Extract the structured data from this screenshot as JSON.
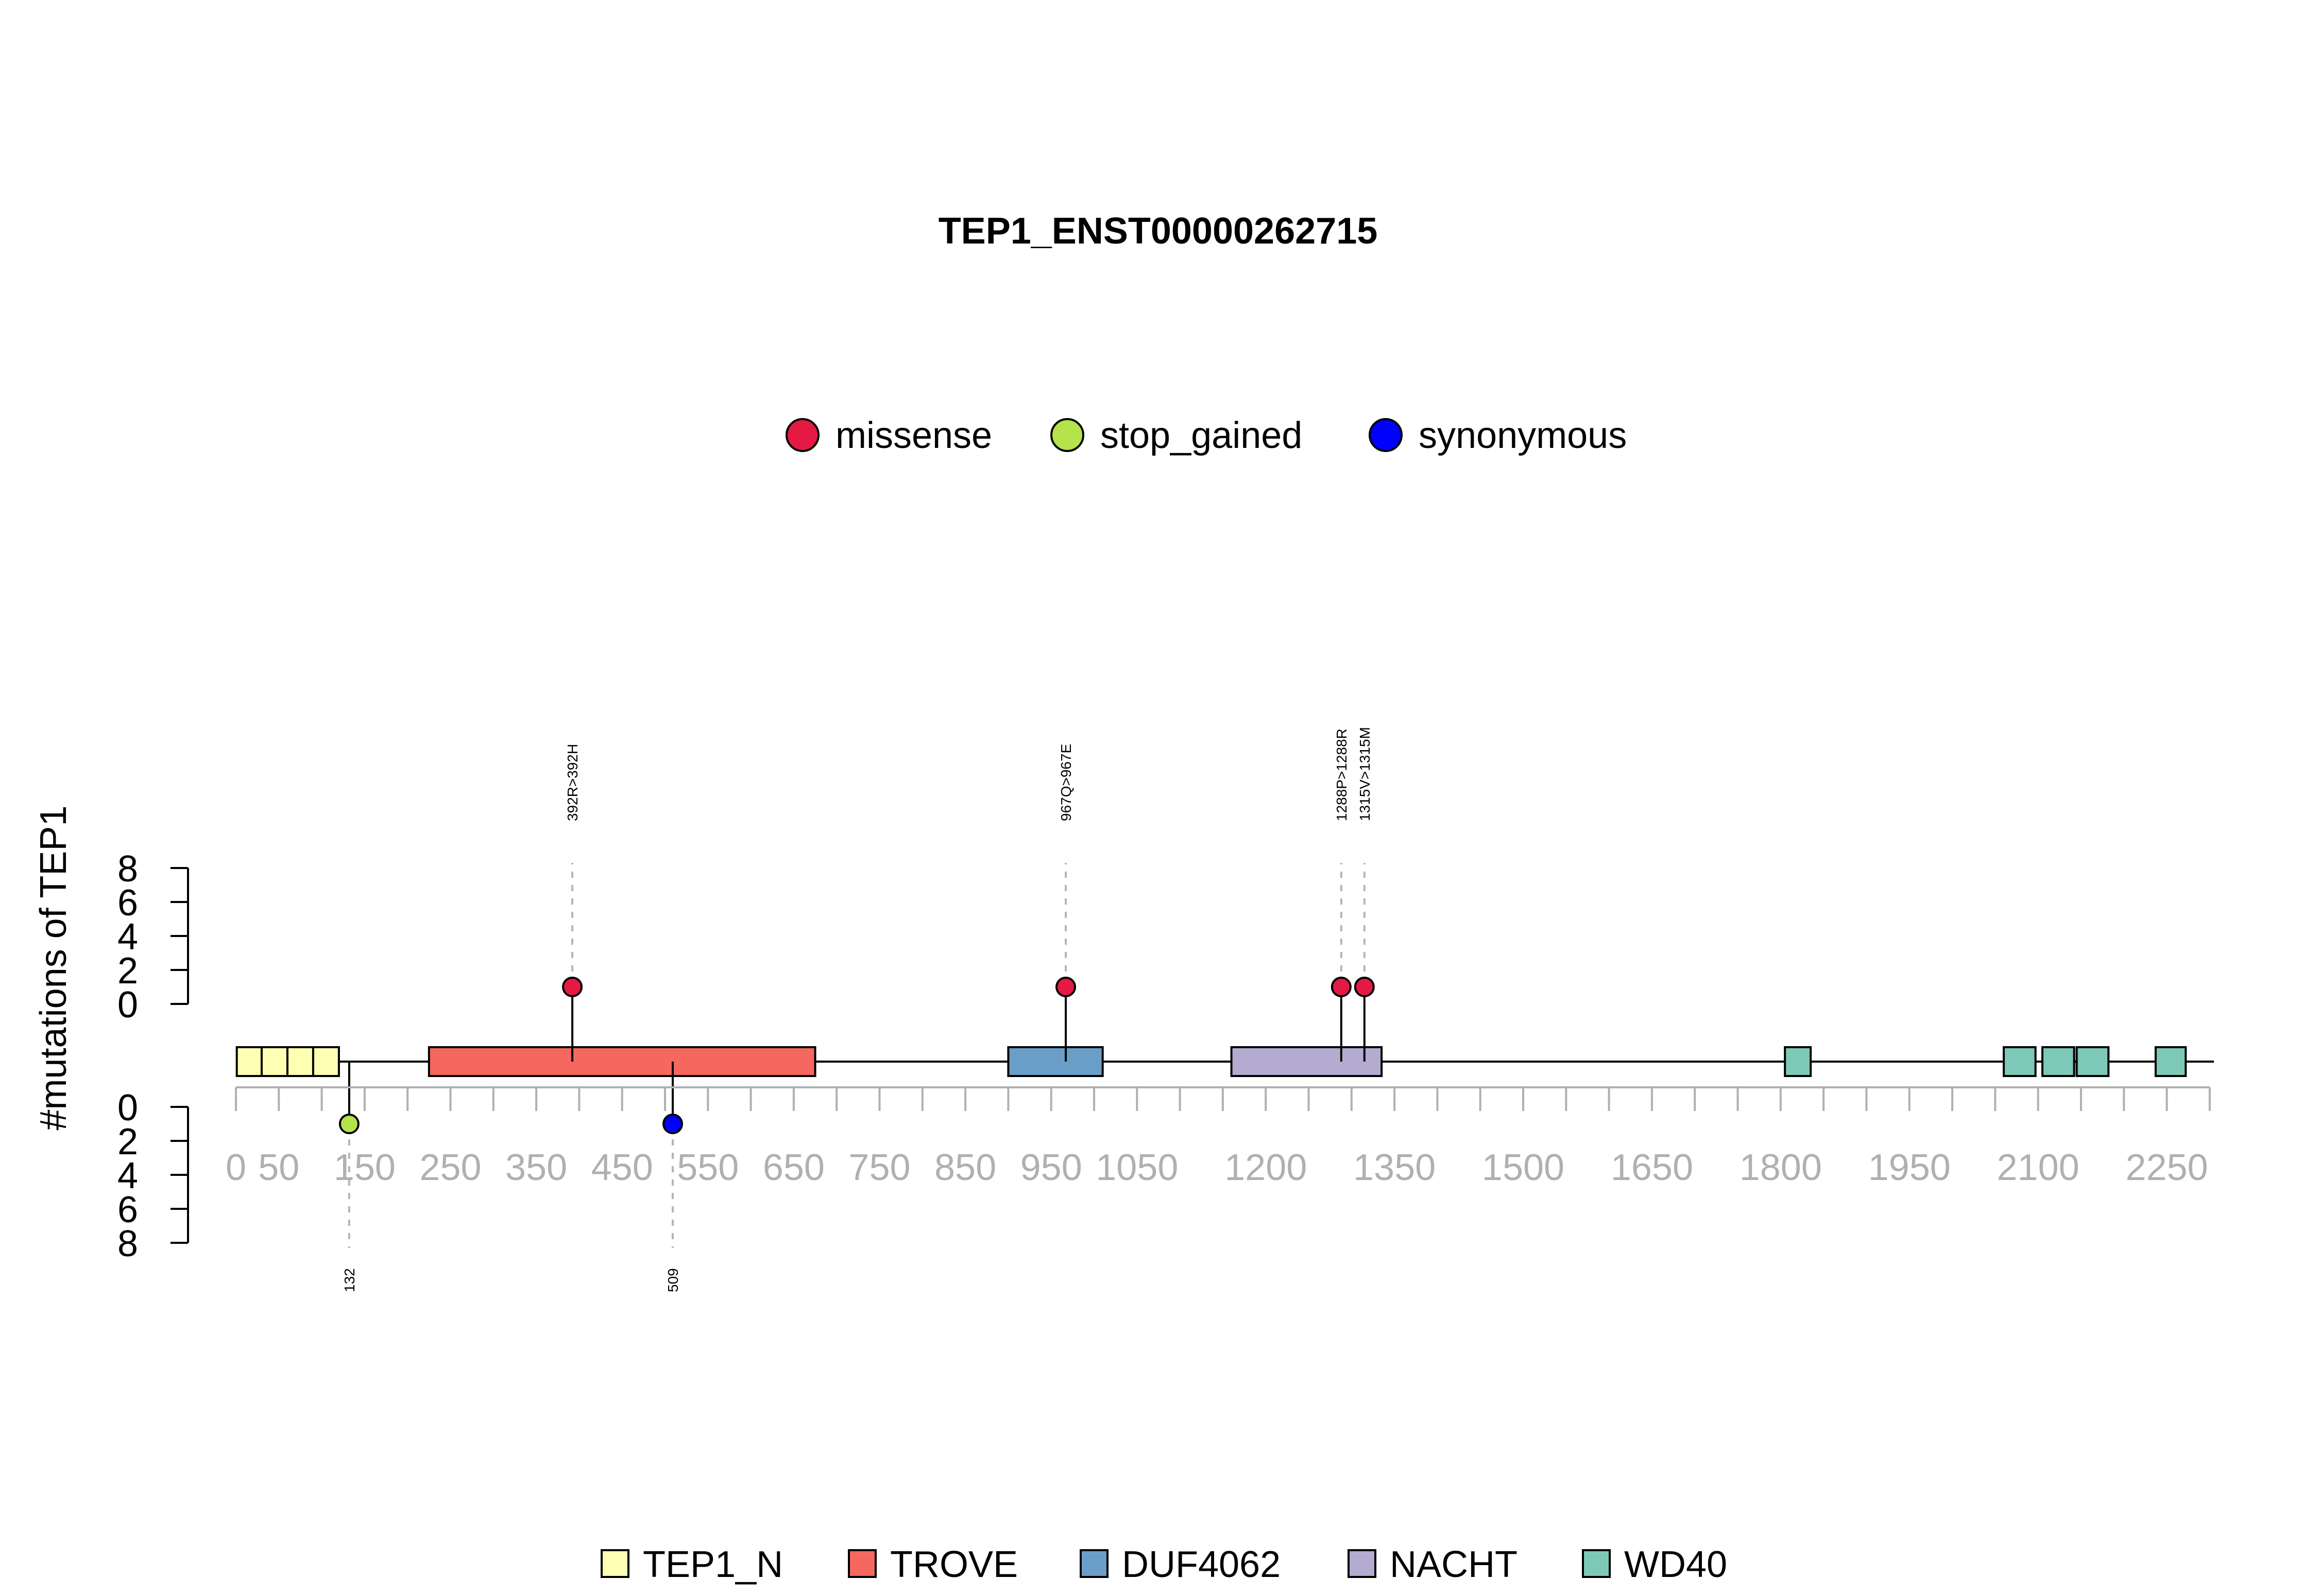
{
  "chart_data": {
    "type": "lollipop",
    "title": "TEP1_ENST00000262715",
    "ylabel": "#mutations of TEP1",
    "y_ticks": [
      "0",
      "2",
      "4",
      "6",
      "8"
    ],
    "ylim": [
      0,
      8
    ],
    "x_tick_labels": [
      {
        "label": "0",
        "value": 0
      },
      {
        "label": "50",
        "value": 50
      },
      {
        "label": "150",
        "value": 150
      },
      {
        "label": "250",
        "value": 250
      },
      {
        "label": "350",
        "value": 350
      },
      {
        "label": "450",
        "value": 450
      },
      {
        "label": "550",
        "value": 550
      },
      {
        "label": "650",
        "value": 650
      },
      {
        "label": "750",
        "value": 750
      },
      {
        "label": "850",
        "value": 850
      },
      {
        "label": "950",
        "value": 950
      },
      {
        "label": "1050",
        "value": 1050
      },
      {
        "label": "1200",
        "value": 1200
      },
      {
        "label": "1350",
        "value": 1350
      },
      {
        "label": "1500",
        "value": 1500
      },
      {
        "label": "1650",
        "value": 1650
      },
      {
        "label": "1800",
        "value": 1800
      },
      {
        "label": "1950",
        "value": 1950
      },
      {
        "label": "2100",
        "value": 2100
      },
      {
        "label": "2250",
        "value": 2250
      }
    ],
    "mutation_legend": [
      {
        "name": "missense",
        "color": "#e41a45"
      },
      {
        "name": "stop_gained",
        "color": "#b5e34b"
      },
      {
        "name": "synonymous",
        "color": "#0000ff"
      }
    ],
    "mutations": [
      {
        "position": 392,
        "count": 1,
        "type": "missense",
        "side": "top",
        "label": "392R>392H"
      },
      {
        "position": 967,
        "count": 1,
        "type": "missense",
        "side": "top",
        "label": "967Q>967E"
      },
      {
        "position": 1288,
        "count": 1,
        "type": "missense",
        "side": "top",
        "label": "1288P>1288R"
      },
      {
        "position": 1315,
        "count": 1,
        "type": "missense",
        "side": "top",
        "label": "1315V>1315M"
      },
      {
        "position": 132,
        "count": 1,
        "type": "stop_gained",
        "side": "bottom",
        "label": "132"
      },
      {
        "position": 509,
        "count": 1,
        "type": "synonymous",
        "side": "bottom",
        "label": "509"
      }
    ],
    "domain_legend": [
      {
        "name": "TEP1_N",
        "color": "#ffffb3"
      },
      {
        "name": "TROVE",
        "color": "#f4685f"
      },
      {
        "name": "DUF4062",
        "color": "#6a9ec9"
      },
      {
        "name": "NACHT",
        "color": "#b3acd0"
      },
      {
        "name": "WD40",
        "color": "#7ec8b8"
      }
    ],
    "domains": [
      {
        "name": "TEP1_N",
        "start": 1,
        "end": 30
      },
      {
        "name": "TEP1_N",
        "start": 30,
        "end": 60
      },
      {
        "name": "TEP1_N",
        "start": 60,
        "end": 90
      },
      {
        "name": "TEP1_N",
        "start": 90,
        "end": 120
      },
      {
        "name": "TROVE",
        "start": 225,
        "end": 675
      },
      {
        "name": "DUF4062",
        "start": 900,
        "end": 1010
      },
      {
        "name": "NACHT",
        "start": 1160,
        "end": 1335
      },
      {
        "name": "WD40",
        "start": 1805,
        "end": 1835
      },
      {
        "name": "WD40",
        "start": 2060,
        "end": 2097
      },
      {
        "name": "WD40",
        "start": 2105,
        "end": 2142
      },
      {
        "name": "WD40",
        "start": 2145,
        "end": 2182
      },
      {
        "name": "WD40",
        "start": 2237,
        "end": 2272
      }
    ],
    "protein_length": 2300
  }
}
